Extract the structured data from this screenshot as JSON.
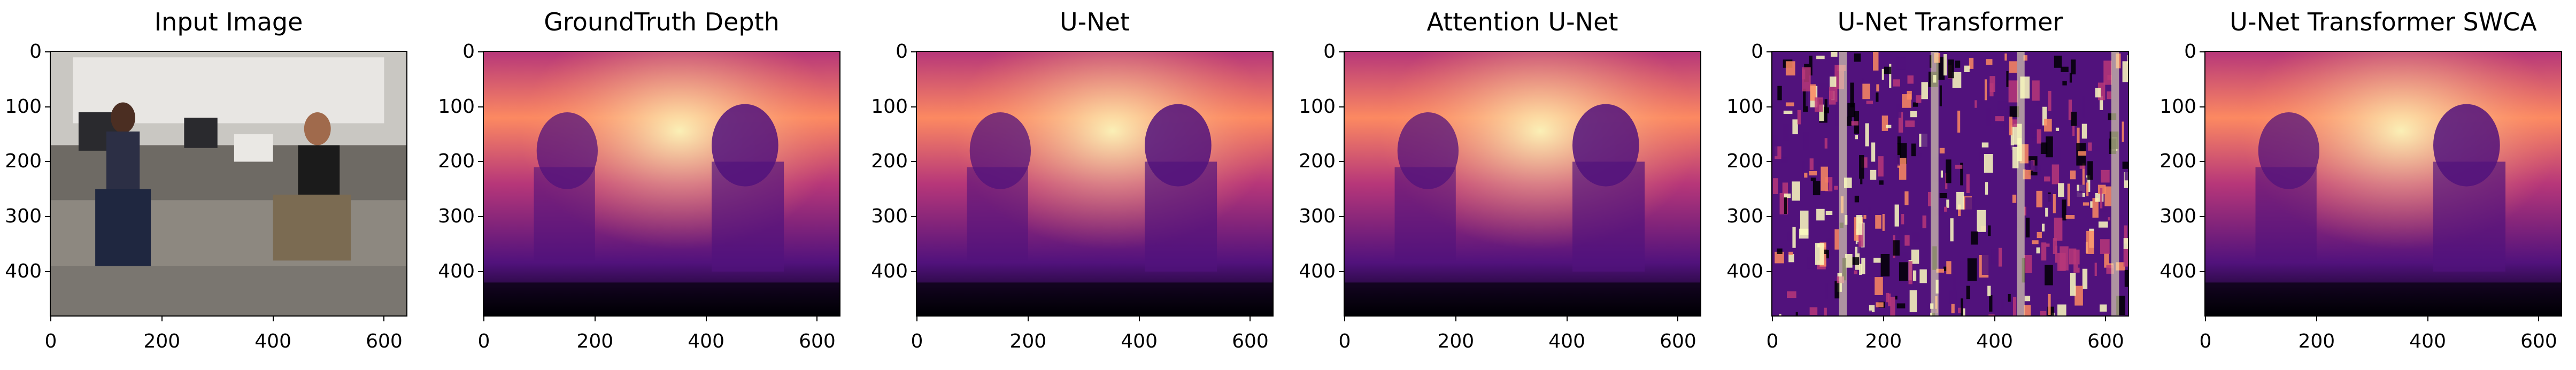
{
  "figure": {
    "panels": [
      {
        "title": "Input Image",
        "kind": "rgb",
        "icon": "photo-of-office-scene"
      },
      {
        "title": "GroundTruth Depth",
        "kind": "depth",
        "icon": "depth-map"
      },
      {
        "title": "U-Net",
        "kind": "depth",
        "icon": "depth-map"
      },
      {
        "title": "Attention U-Net",
        "kind": "depth",
        "icon": "depth-map"
      },
      {
        "title": "U-Net Transformer",
        "kind": "noisy",
        "icon": "noisy-depth-map"
      },
      {
        "title": "U-Net Transformer SWCA",
        "kind": "depth",
        "icon": "depth-map"
      }
    ],
    "y_ticks": [
      "0",
      "100",
      "200",
      "300",
      "400"
    ],
    "x_ticks": [
      "0",
      "200",
      "400",
      "600"
    ],
    "y_range": [
      0,
      480
    ],
    "x_range": [
      0,
      640
    ],
    "colormap": "magma",
    "colors": {
      "far": "#fcfdbf",
      "mid_far": "#fc8961",
      "mid": "#b73779",
      "mid_near": "#51127c",
      "near": "#000004"
    }
  }
}
